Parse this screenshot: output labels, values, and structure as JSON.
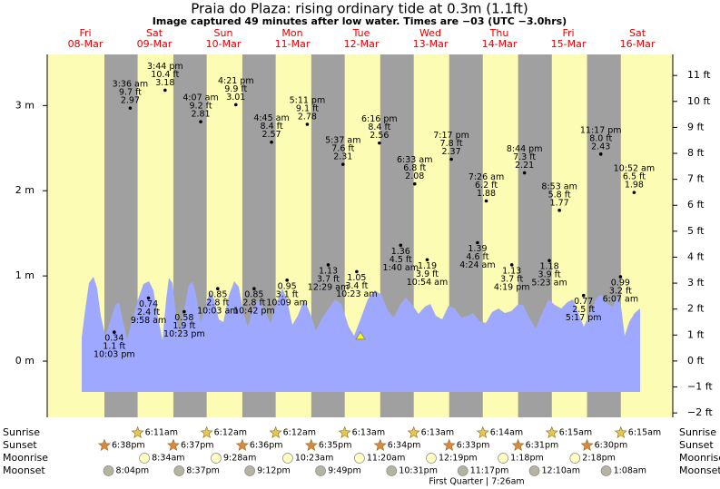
{
  "chart_data": {
    "type": "tide",
    "title": "Praia do Plaza: rising  ordinary tide at 0.3m (1.1ft)",
    "subtitle": "Image captured 49 minutes after low water. Times are −03 (UTC −3.0hrs)",
    "days": [
      {
        "name": "Fri",
        "date": "08-Mar"
      },
      {
        "name": "Sat",
        "date": "09-Mar"
      },
      {
        "name": "Sun",
        "date": "10-Mar"
      },
      {
        "name": "Mon",
        "date": "11-Mar"
      },
      {
        "name": "Tue",
        "date": "12-Mar"
      },
      {
        "name": "Wed",
        "date": "13-Mar"
      },
      {
        "name": "Thu",
        "date": "14-Mar"
      },
      {
        "name": "Fri",
        "date": "15-Mar"
      },
      {
        "name": "Sat",
        "date": "16-Mar"
      }
    ],
    "ylim": [
      -0.66,
      3.6
    ],
    "yticks": [
      {
        "value": 0,
        "label": "0 m"
      },
      {
        "value": 1,
        "label": "1 m"
      },
      {
        "value": 2,
        "label": "2 m"
      },
      {
        "value": 3,
        "label": "3 m"
      }
    ],
    "y2lim": [
      -2.17,
      11.81
    ],
    "y2ticks": [
      {
        "value": -2,
        "label": "−2 ft"
      },
      {
        "value": -1,
        "label": "−1 ft"
      },
      {
        "value": 0,
        "label": "0 ft"
      },
      {
        "value": 1,
        "label": "1 ft"
      },
      {
        "value": 2,
        "label": "2 ft"
      },
      {
        "value": 3,
        "label": "3 ft"
      },
      {
        "value": 4,
        "label": "4 ft"
      },
      {
        "value": 5,
        "label": "5 ft"
      },
      {
        "value": 6,
        "label": "6 ft"
      },
      {
        "value": 7,
        "label": "7 ft"
      },
      {
        "value": 8,
        "label": "8 ft"
      },
      {
        "value": 9,
        "label": "9 ft"
      },
      {
        "value": 10,
        "label": "10 ft"
      },
      {
        "value": 11,
        "label": "11 ft"
      }
    ],
    "high_tides": [
      {
        "date": "09-Mar",
        "time": "3:36 am",
        "value": 2.97,
        "value_label_ft": "9.7 ft"
      },
      {
        "date": "09-Mar",
        "time": "3:44 pm",
        "value": 3.18,
        "value_label_ft": "10.4 ft"
      },
      {
        "date": "10-Mar",
        "time": "4:07 am",
        "value": 2.81,
        "value_label_ft": "9.2 ft"
      },
      {
        "date": "10-Mar",
        "time": "4:21 pm",
        "value": 3.01,
        "value_label_ft": "9.9 ft"
      },
      {
        "date": "11-Mar",
        "time": "4:45 am",
        "value": 2.57,
        "value_label_ft": "8.4 ft"
      },
      {
        "date": "11-Mar",
        "time": "5:11 pm",
        "value": 2.78,
        "value_label_ft": "9.1 ft"
      },
      {
        "date": "12-Mar",
        "time": "5:37 am",
        "value": 2.31,
        "value_label_ft": "7.6 ft"
      },
      {
        "date": "12-Mar",
        "time": "6:16 pm",
        "value": 2.56,
        "value_label_ft": "8.4 ft"
      },
      {
        "date": "13-Mar",
        "time": "6:33 am",
        "value": 2.08,
        "value_label_ft": "6.8 ft"
      },
      {
        "date": "13-Mar",
        "time": "7:17 pm",
        "value": 2.37,
        "value_label_ft": "7.8 ft"
      },
      {
        "date": "14-Mar",
        "time": "7:26 am",
        "value": 1.88,
        "value_label_ft": "6.2 ft"
      },
      {
        "date": "14-Mar",
        "time": "8:44 pm",
        "value": 2.21,
        "value_label_ft": "7.3 ft"
      },
      {
        "date": "15-Mar",
        "time": "8:53 am",
        "value": 1.77,
        "value_label_ft": "5.8 ft"
      },
      {
        "date": "15-Mar",
        "time": "11:17 pm",
        "value": 2.43,
        "value_label_ft": "8.0 ft"
      },
      {
        "date": "16-Mar",
        "time": "10:52 am",
        "value": 1.98,
        "value_label_ft": "6.5 ft"
      }
    ],
    "low_tides": [
      {
        "date": "08-Mar",
        "time": "10:03 pm",
        "value": 0.34,
        "value_label_ft": "1.1 ft"
      },
      {
        "date": "09-Mar",
        "time": "9:58 am",
        "value": 0.74,
        "value_label_ft": "2.4 ft"
      },
      {
        "date": "09-Mar",
        "time": "10:23 pm",
        "value": 0.58,
        "value_label_ft": "1.9 ft"
      },
      {
        "date": "10-Mar",
        "time": "10:03 am",
        "value": 0.85,
        "value_label_ft": "2.8 ft"
      },
      {
        "date": "10-Mar",
        "time": "10:42 pm",
        "value": 0.85,
        "value_label_ft": "2.8 ft"
      },
      {
        "date": "11-Mar",
        "time": "10:09 am",
        "value": 0.95,
        "value_label_ft": "3.1 ft"
      },
      {
        "date": "12-Mar",
        "time": "12:29 am",
        "value": 1.13,
        "value_label_ft": "3.7 ft"
      },
      {
        "date": "12-Mar",
        "time": "10:23 am",
        "value": 1.05,
        "value_label_ft": "3.4 ft"
      },
      {
        "date": "13-Mar",
        "time": "1:40 am",
        "value": 1.36,
        "value_label_ft": "4.5 ft"
      },
      {
        "date": "13-Mar",
        "time": "10:54 am",
        "value": 1.19,
        "value_label_ft": "3.9 ft"
      },
      {
        "date": "14-Mar",
        "time": "4:24 am",
        "value": 1.39,
        "value_label_ft": "4.6 ft"
      },
      {
        "date": "14-Mar",
        "time": "4:19 pm",
        "value": 1.13,
        "value_label_ft": "3.7 ft"
      },
      {
        "date": "15-Mar",
        "time": "5:23 am",
        "value": 1.18,
        "value_label_ft": "3.9 ft"
      },
      {
        "date": "15-Mar",
        "time": "5:17 pm",
        "value": 0.77,
        "value_label_ft": "2.5 ft"
      },
      {
        "date": "16-Mar",
        "time": "6:07 am",
        "value": 0.99,
        "value_label_ft": "3.2 ft"
      }
    ],
    "current_level": 0.3,
    "row_labels": [
      "Sunrise",
      "Sunset",
      "Moonrise",
      "Moonset"
    ],
    "sunrise": [
      {
        "date": "09-Mar",
        "time": "6:11am"
      },
      {
        "date": "10-Mar",
        "time": "6:12am"
      },
      {
        "date": "11-Mar",
        "time": "6:12am"
      },
      {
        "date": "12-Mar",
        "time": "6:13am"
      },
      {
        "date": "13-Mar",
        "time": "6:13am"
      },
      {
        "date": "14-Mar",
        "time": "6:14am"
      },
      {
        "date": "15-Mar",
        "time": "6:15am"
      },
      {
        "date": "16-Mar",
        "time": "6:15am"
      }
    ],
    "sunset": [
      {
        "date": "08-Mar",
        "time": "6:38pm"
      },
      {
        "date": "09-Mar",
        "time": "6:37pm"
      },
      {
        "date": "10-Mar",
        "time": "6:36pm"
      },
      {
        "date": "11-Mar",
        "time": "6:35pm"
      },
      {
        "date": "12-Mar",
        "time": "6:34pm"
      },
      {
        "date": "13-Mar",
        "time": "6:33pm"
      },
      {
        "date": "14-Mar",
        "time": "6:31pm"
      },
      {
        "date": "15-Mar",
        "time": "6:30pm"
      }
    ],
    "moonrise": [
      {
        "date": "09-Mar",
        "time": "8:34am"
      },
      {
        "date": "10-Mar",
        "time": "9:28am"
      },
      {
        "date": "11-Mar",
        "time": "10:23am"
      },
      {
        "date": "12-Mar",
        "time": "11:20am"
      },
      {
        "date": "13-Mar",
        "time": "12:19pm"
      },
      {
        "date": "14-Mar",
        "time": "1:18pm"
      },
      {
        "date": "15-Mar",
        "time": "2:18pm"
      }
    ],
    "moonset": [
      {
        "date": "08-Mar",
        "time": "8:04pm"
      },
      {
        "date": "09-Mar",
        "time": "8:37pm"
      },
      {
        "date": "10-Mar",
        "time": "9:12pm"
      },
      {
        "date": "11-Mar",
        "time": "9:49pm"
      },
      {
        "date": "12-Mar",
        "time": "10:31pm"
      },
      {
        "date": "13-Mar",
        "time": "11:17pm"
      },
      {
        "date": "15-Mar",
        "time": "12:10am"
      },
      {
        "date": "16-Mar",
        "time": "1:08am"
      }
    ],
    "moon_phase": "First Quarter | 7:26am"
  }
}
